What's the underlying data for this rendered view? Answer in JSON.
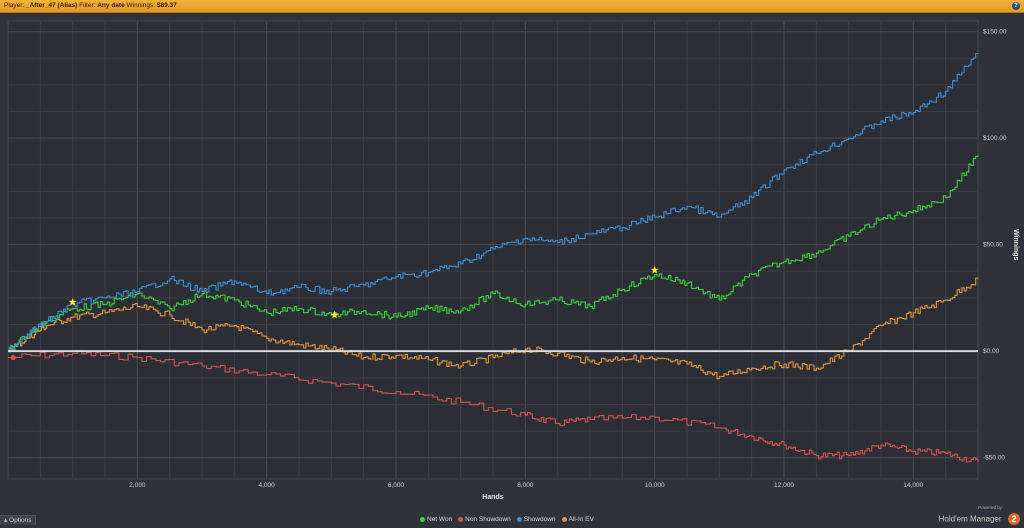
{
  "titlebar": {
    "player_label": "Player:",
    "player_value": "_After_47 (Alias)",
    "filter_label": "Filter:",
    "filter_value": "Any date",
    "winnings_label": "Winnings:",
    "winnings_value": "$89.37",
    "help": "?"
  },
  "footer": {
    "options_label": "Options",
    "options_icon": "caret-up-icon",
    "powered_by": "Powered by",
    "brand_name": "Hold'em Manager",
    "brand_badge": "2"
  },
  "chart_data": {
    "type": "line",
    "xlabel": "Hands",
    "ylabel": "Winnings",
    "xlim": [
      0,
      15000
    ],
    "ylim": [
      -60,
      155
    ],
    "x_ticks": [
      2000,
      4000,
      6000,
      8000,
      10000,
      12000,
      14000
    ],
    "x_tick_labels": [
      "2,000",
      "4,000",
      "6,000",
      "8,000",
      "10,000",
      "12,000",
      "14,000"
    ],
    "y_ticks": [
      150,
      100,
      50,
      0,
      -50
    ],
    "y_tick_labels": [
      "$150.00",
      "$100.00",
      "$50.00",
      "$0.00",
      "-$50.00"
    ],
    "grid": true,
    "legend_position": "bottom-center",
    "zero_line_color": "#d9d9d9",
    "series": [
      {
        "name": "Net Won",
        "color": "#3ecf3e",
        "x": [
          0,
          300,
          600,
          1000,
          1500,
          2000,
          2500,
          3000,
          3500,
          4000,
          4500,
          5000,
          5500,
          6000,
          6500,
          7000,
          7500,
          8000,
          8500,
          9000,
          9500,
          10000,
          10500,
          11000,
          11500,
          12000,
          12500,
          13000,
          13500,
          14000,
          14500,
          15000
        ],
        "y": [
          0,
          8,
          14,
          20,
          22,
          27,
          20,
          27,
          24,
          18,
          20,
          17,
          19,
          16,
          20,
          19,
          27,
          22,
          24,
          21,
          29,
          36,
          32,
          24,
          36,
          42,
          46,
          54,
          62,
          66,
          72,
          92
        ]
      },
      {
        "name": "Non Showdown",
        "color": "#d9534f",
        "x": [
          0,
          1000,
          2000,
          3000,
          4000,
          5000,
          6000,
          7000,
          8000,
          8500,
          9000,
          10000,
          11000,
          11500,
          12000,
          12500,
          13000,
          13500,
          14000,
          14500,
          15000
        ],
        "y": [
          -3,
          -1,
          -3,
          -7,
          -11,
          -15,
          -19,
          -24,
          -30,
          -34,
          -32,
          -31,
          -36,
          -40,
          -44,
          -49,
          -49,
          -44,
          -47,
          -48,
          -52
        ]
      },
      {
        "name": "Showdown",
        "color": "#3f8ed4",
        "x": [
          0,
          300,
          600,
          1000,
          1500,
          2000,
          2500,
          3000,
          3500,
          4000,
          4500,
          5000,
          5500,
          6000,
          6500,
          7000,
          7500,
          8000,
          8500,
          9000,
          9500,
          10000,
          10500,
          11000,
          11500,
          12000,
          12500,
          13000,
          13500,
          14000,
          14500,
          15000
        ],
        "y": [
          0,
          8,
          14,
          22,
          25,
          28,
          34,
          28,
          33,
          27,
          30,
          28,
          31,
          35,
          37,
          41,
          48,
          53,
          51,
          55,
          58,
          63,
          68,
          63,
          72,
          85,
          93,
          100,
          108,
          112,
          122,
          140
        ]
      },
      {
        "name": "All-In EV",
        "color": "#e2953b",
        "x": [
          0,
          300,
          600,
          1000,
          1500,
          2000,
          2500,
          3000,
          3500,
          4000,
          4500,
          5000,
          5500,
          6000,
          6500,
          7000,
          7500,
          8000,
          8500,
          9000,
          9500,
          10000,
          10500,
          11000,
          11500,
          12000,
          12500,
          13000,
          13500,
          14000,
          14500,
          15000
        ],
        "y": [
          0,
          6,
          12,
          16,
          18,
          21,
          17,
          10,
          12,
          6,
          3,
          1,
          -3,
          -2,
          -4,
          -7,
          -3,
          1,
          -1,
          -5,
          -3,
          -4,
          -6,
          -12,
          -8,
          -6,
          -8,
          0,
          12,
          18,
          24,
          34
        ]
      }
    ],
    "markers": [
      {
        "type": "star",
        "color": "#ffe83a",
        "x": 1000,
        "y": 23
      },
      {
        "type": "star",
        "color": "#ffe83a",
        "x": 5050,
        "y": 17
      },
      {
        "type": "star",
        "color": "#ffe83a",
        "x": 10000,
        "y": 38
      },
      {
        "type": "start",
        "color": "#d9534f",
        "x": 80,
        "y": -3
      }
    ]
  }
}
